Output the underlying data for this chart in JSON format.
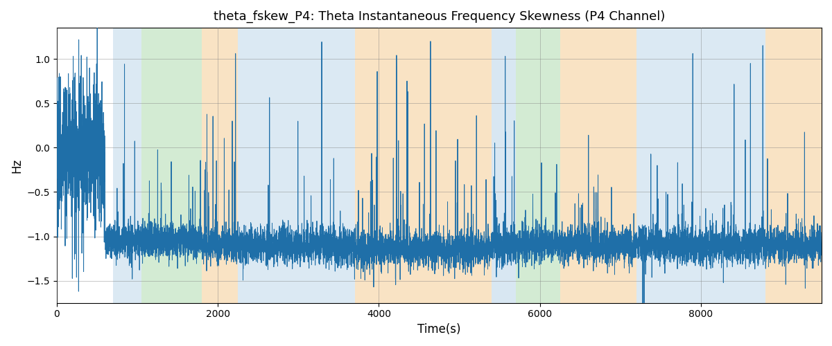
{
  "title": "theta_fskew_P4: Theta Instantaneous Frequency Skewness (P4 Channel)",
  "xlabel": "Time(s)",
  "ylabel": "Hz",
  "xlim": [
    0,
    9500
  ],
  "ylim": [
    -1.75,
    1.35
  ],
  "line_color": "#1f6fa8",
  "line_width": 0.7,
  "grid": true,
  "bands": [
    {
      "xmin": 700,
      "xmax": 1050,
      "color": "#b8d4e8",
      "alpha": 0.5
    },
    {
      "xmin": 1050,
      "xmax": 1800,
      "color": "#a8d8a8",
      "alpha": 0.5
    },
    {
      "xmin": 1800,
      "xmax": 2250,
      "color": "#f5c98a",
      "alpha": 0.5
    },
    {
      "xmin": 2250,
      "xmax": 3250,
      "color": "#b8d4e8",
      "alpha": 0.5
    },
    {
      "xmin": 3250,
      "xmax": 3700,
      "color": "#b8d4e8",
      "alpha": 0.5
    },
    {
      "xmin": 3700,
      "xmax": 5400,
      "color": "#f5c98a",
      "alpha": 0.5
    },
    {
      "xmin": 5400,
      "xmax": 5700,
      "color": "#b8d4e8",
      "alpha": 0.55
    },
    {
      "xmin": 5700,
      "xmax": 6250,
      "color": "#a8d8a8",
      "alpha": 0.5
    },
    {
      "xmin": 6250,
      "xmax": 7200,
      "color": "#f5c98a",
      "alpha": 0.5
    },
    {
      "xmin": 7200,
      "xmax": 7700,
      "color": "#b8d4e8",
      "alpha": 0.5
    },
    {
      "xmin": 7700,
      "xmax": 8300,
      "color": "#b8d4e8",
      "alpha": 0.5
    },
    {
      "xmin": 8300,
      "xmax": 8800,
      "color": "#b8d4e8",
      "alpha": 0.5
    },
    {
      "xmin": 8800,
      "xmax": 9500,
      "color": "#f5c98a",
      "alpha": 0.5
    }
  ],
  "n_points": 9500
}
